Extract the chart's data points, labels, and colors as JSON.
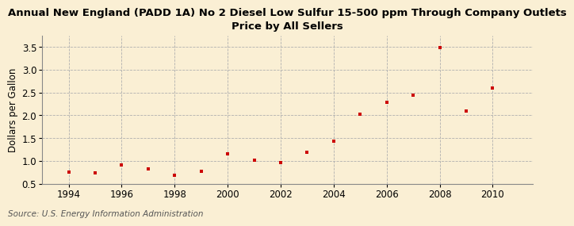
{
  "title_line1": "Annual New England (PADD 1A) No 2 Diesel Low Sulfur 15-500 ppm Through Company Outlets",
  "title_line2": "Price by All Sellers",
  "ylabel": "Dollars per Gallon",
  "source": "Source: U.S. Energy Information Administration",
  "background_color": "#faefd4",
  "marker_color": "#cc0000",
  "years": [
    1994,
    1995,
    1996,
    1997,
    1998,
    1999,
    2000,
    2001,
    2002,
    2003,
    2004,
    2005,
    2006,
    2007,
    2008,
    2009,
    2010
  ],
  "values": [
    0.76,
    0.74,
    0.91,
    0.83,
    0.69,
    0.77,
    1.15,
    1.01,
    0.96,
    1.19,
    1.43,
    2.02,
    2.29,
    2.45,
    3.49,
    2.1,
    2.6
  ],
  "xlim": [
    1993.0,
    2011.5
  ],
  "ylim": [
    0.5,
    3.75
  ],
  "yticks": [
    0.5,
    1.0,
    1.5,
    2.0,
    2.5,
    3.0,
    3.5
  ],
  "xticks": [
    1994,
    1996,
    1998,
    2000,
    2002,
    2004,
    2006,
    2008,
    2010
  ],
  "grid_color": "#b0b0b0",
  "title_fontsize": 9.5,
  "axis_label_fontsize": 8.5,
  "tick_fontsize": 8.5,
  "source_fontsize": 7.5
}
